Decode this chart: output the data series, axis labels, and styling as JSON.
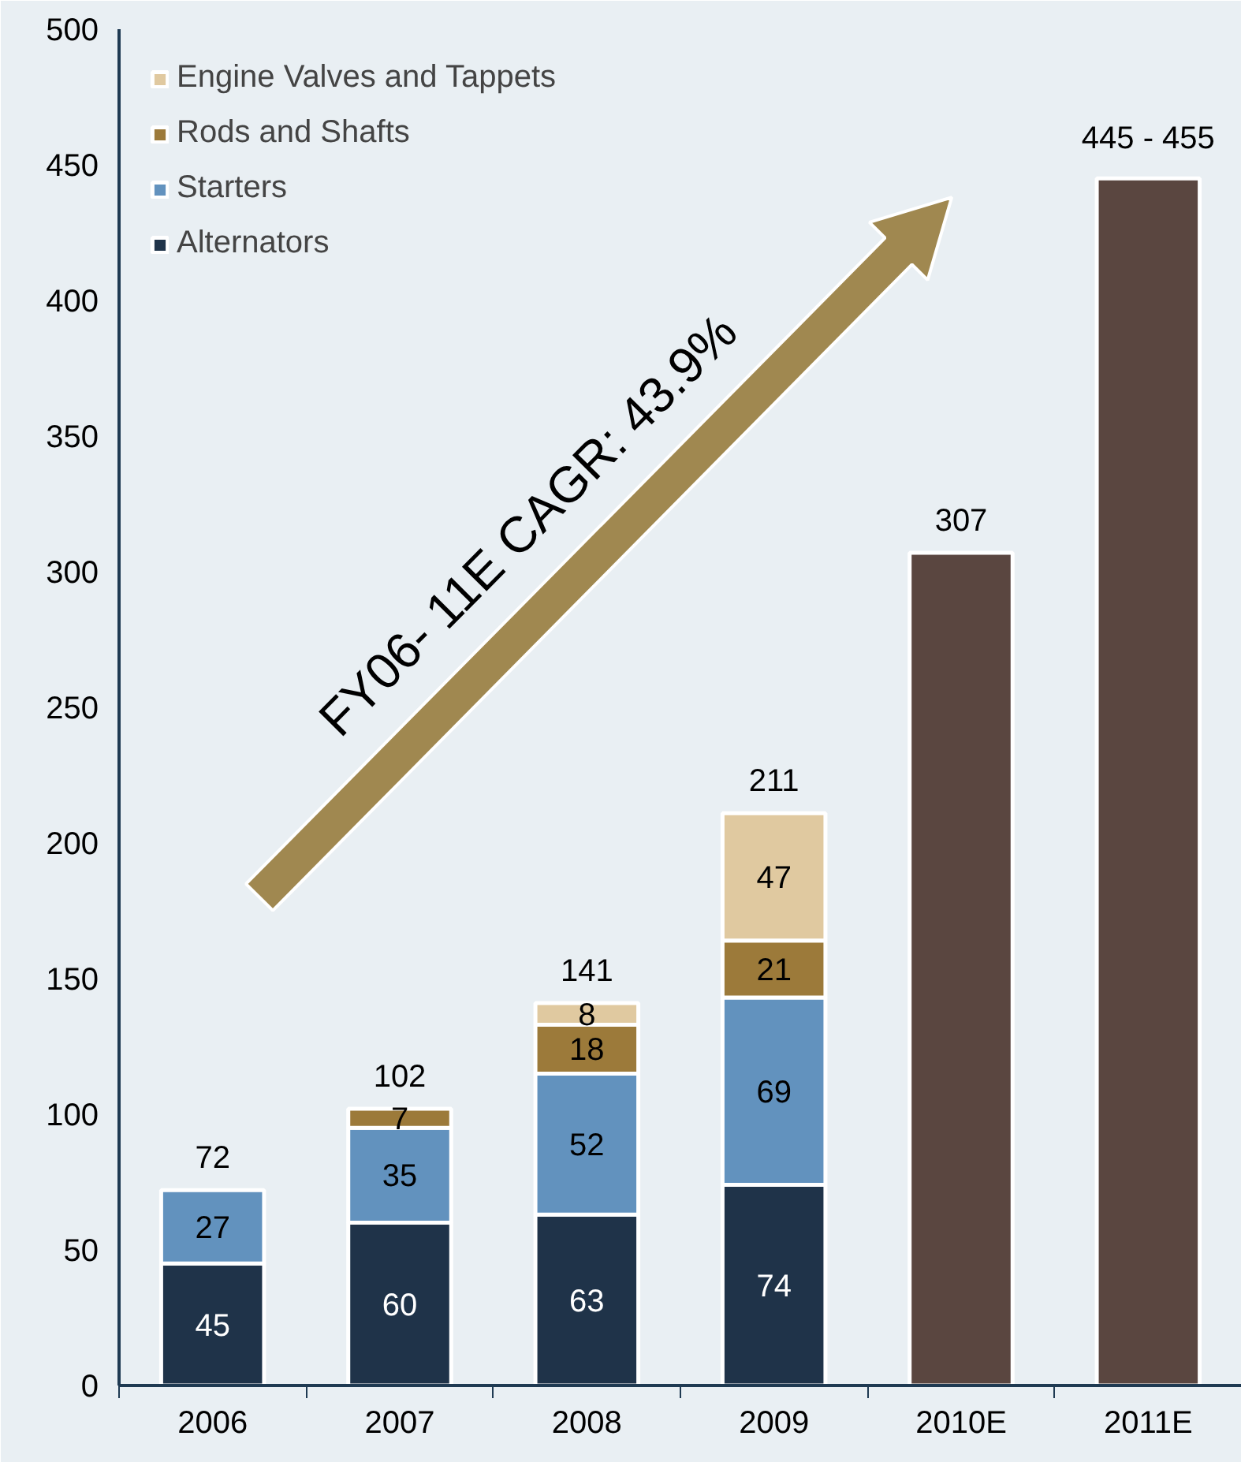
{
  "chart_data": {
    "type": "bar",
    "stacked": true,
    "categories": [
      "2006",
      "2007",
      "2008",
      "2009",
      "2010E",
      "2011E"
    ],
    "series": [
      {
        "name": "Alternators",
        "color": "#1f3349",
        "values": [
          45,
          60,
          63,
          74,
          null,
          null
        ],
        "value_labels": [
          "45",
          "60",
          "63",
          "74",
          null,
          null
        ]
      },
      {
        "name": "Starters",
        "color": "#6292be",
        "values": [
          27,
          35,
          52,
          69,
          null,
          null
        ],
        "value_labels": [
          "27",
          "35",
          "52",
          "69",
          null,
          null
        ]
      },
      {
        "name": "Rods and Shafts",
        "color": "#9c7a3a",
        "values": [
          null,
          7,
          18,
          21,
          null,
          null
        ],
        "value_labels": [
          null,
          "7",
          "18",
          "21",
          null,
          null
        ]
      },
      {
        "name": "Engine Valves and Tappets",
        "color": "#e0c9a0",
        "values": [
          null,
          null,
          8,
          47,
          null,
          null
        ],
        "value_labels": [
          null,
          null,
          "8",
          "47",
          null,
          null
        ]
      },
      {
        "color": "#5a4640",
        "values": [
          null,
          null,
          null,
          null,
          307,
          445
        ]
      }
    ],
    "totals": [
      "72",
      "102",
      "141",
      "211",
      "307",
      "445 - 455"
    ],
    "ylim": [
      0,
      500
    ],
    "yticks": [
      0,
      50,
      100,
      150,
      200,
      250,
      300,
      350,
      400,
      450,
      500
    ],
    "grid": false,
    "legend": "top left",
    "annotations": [
      "FY06- 11E  CAGR: 43.9%"
    ]
  }
}
